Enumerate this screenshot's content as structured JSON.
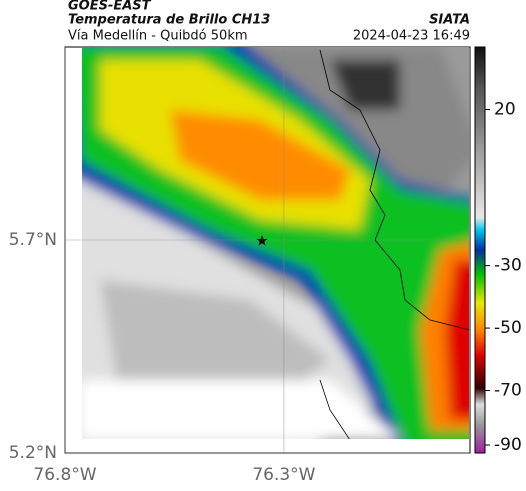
{
  "header": {
    "satellite": "GOES-EAST",
    "product": "Temperatura de Brillo CH13",
    "route": "Vía Medellín - Quibdó 50km",
    "source": "SIATA",
    "datetime": "2024-04-23 16:49"
  },
  "map": {
    "xlim": [
      -76.8,
      -75.875
    ],
    "ylim": [
      5.2,
      6.153
    ],
    "xticks": [
      {
        "value": -76.8,
        "label": "76.8°W"
      },
      {
        "value": -76.3,
        "label": "76.3°W"
      }
    ],
    "yticks": [
      {
        "value": 5.7,
        "label": "5.7°N"
      },
      {
        "value": 5.2,
        "label": "5.2°N"
      }
    ],
    "grid": true
  },
  "colorbar": {
    "lim": [
      -90,
      40
    ],
    "ticks": [
      20,
      -30,
      -50,
      -70,
      -90
    ]
  }
}
